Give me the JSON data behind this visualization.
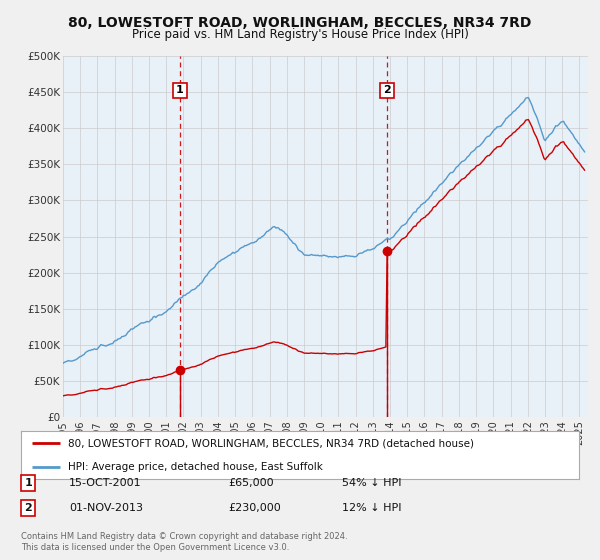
{
  "title": "80, LOWESTOFT ROAD, WORLINGHAM, BECCLES, NR34 7RD",
  "subtitle": "Price paid vs. HM Land Registry's House Price Index (HPI)",
  "bg_color": "#f0f0f0",
  "plot_bg_color": "#e8f0f8",
  "hpi_color": "#5599cc",
  "price_color": "#cc0000",
  "marker_color": "#cc0000",
  "vline_color": "#cc0000",
  "grid_color": "#cccccc",
  "ylim": [
    0,
    500000
  ],
  "yticks": [
    0,
    50000,
    100000,
    150000,
    200000,
    250000,
    300000,
    350000,
    400000,
    450000,
    500000
  ],
  "ytick_labels": [
    "£0",
    "£50K",
    "£100K",
    "£150K",
    "£200K",
    "£250K",
    "£300K",
    "£350K",
    "£400K",
    "£450K",
    "£500K"
  ],
  "xlim_start": 1995.0,
  "xlim_end": 2025.5,
  "sale1_x": 2001.79,
  "sale1_y": 65000,
  "sale1_label": "1",
  "sale2_x": 2013.83,
  "sale2_y": 230000,
  "sale2_label": "2",
  "legend_line1": "80, LOWESTOFT ROAD, WORLINGHAM, BECCLES, NR34 7RD (detached house)",
  "legend_line2": "HPI: Average price, detached house, East Suffolk",
  "annotation1": [
    "1",
    "15-OCT-2001",
    "£65,000",
    "54% ↓ HPI"
  ],
  "annotation2": [
    "2",
    "01-NOV-2013",
    "£230,000",
    "12% ↓ HPI"
  ],
  "footer1": "Contains HM Land Registry data © Crown copyright and database right 2024.",
  "footer2": "This data is licensed under the Open Government Licence v3.0."
}
